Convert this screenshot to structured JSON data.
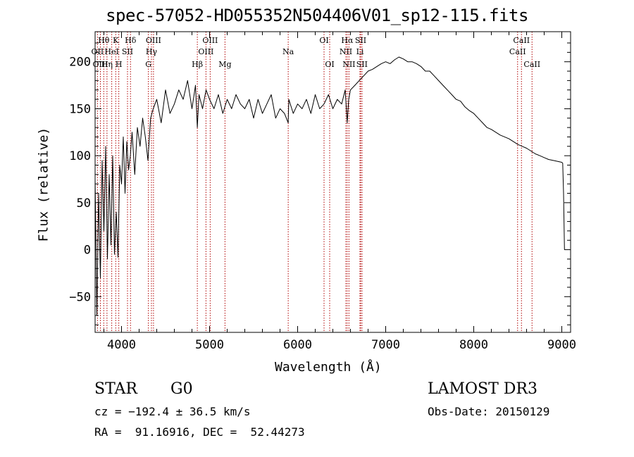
{
  "chart_data": {
    "type": "line",
    "title": "spec-57052-HD055352N504406V01_sp12-115.fits",
    "xlabel": "Wavelength (Å)",
    "ylabel": "Flux (relative)",
    "xlim": [
      3700,
      9100
    ],
    "ylim": [
      -88,
      232
    ],
    "xticks": [
      4000,
      5000,
      6000,
      7000,
      8000,
      9000
    ],
    "yticks": [
      -50,
      0,
      50,
      100,
      150,
      200
    ],
    "series": [
      {
        "name": "flux",
        "x": [
          3700,
          3720,
          3740,
          3760,
          3780,
          3800,
          3820,
          3840,
          3860,
          3880,
          3900,
          3920,
          3940,
          3960,
          3980,
          4000,
          4020,
          4040,
          4060,
          4080,
          4100,
          4120,
          4150,
          4180,
          4210,
          4240,
          4270,
          4300,
          4330,
          4360,
          4400,
          4450,
          4500,
          4550,
          4600,
          4650,
          4700,
          4750,
          4800,
          4840,
          4861,
          4880,
          4920,
          4960,
          5000,
          5050,
          5100,
          5150,
          5200,
          5250,
          5300,
          5350,
          5400,
          5450,
          5500,
          5550,
          5600,
          5650,
          5700,
          5750,
          5800,
          5850,
          5893,
          5900,
          5950,
          6000,
          6050,
          6100,
          6150,
          6200,
          6250,
          6300,
          6350,
          6400,
          6450,
          6500,
          6540,
          6563,
          6580,
          6600,
          6650,
          6700,
          6750,
          6800,
          6850,
          6900,
          6950,
          7000,
          7050,
          7100,
          7150,
          7200,
          7250,
          7300,
          7350,
          7400,
          7450,
          7500,
          7550,
          7600,
          7650,
          7700,
          7750,
          7800,
          7850,
          7900,
          7950,
          8000,
          8050,
          8100,
          8150,
          8200,
          8250,
          8300,
          8350,
          8400,
          8450,
          8500,
          8550,
          8600,
          8650,
          8700,
          8750,
          8800,
          8850,
          8900,
          8950,
          9000,
          9010,
          9020,
          9030
        ],
        "y": [
          75,
          -70,
          60,
          -30,
          95,
          20,
          110,
          -10,
          80,
          5,
          100,
          -5,
          40,
          -8,
          90,
          70,
          120,
          60,
          115,
          85,
          100,
          125,
          80,
          130,
          110,
          140,
          120,
          95,
          140,
          150,
          160,
          135,
          170,
          145,
          155,
          170,
          160,
          180,
          150,
          175,
          130,
          165,
          150,
          170,
          160,
          150,
          165,
          145,
          160,
          150,
          165,
          155,
          150,
          160,
          140,
          160,
          145,
          155,
          165,
          140,
          150,
          145,
          135,
          160,
          145,
          155,
          150,
          160,
          145,
          165,
          150,
          155,
          165,
          150,
          160,
          155,
          170,
          135,
          160,
          170,
          175,
          180,
          185,
          190,
          192,
          195,
          198,
          200,
          198,
          202,
          205,
          203,
          200,
          200,
          198,
          195,
          190,
          190,
          185,
          180,
          175,
          170,
          165,
          160,
          158,
          152,
          148,
          145,
          140,
          135,
          130,
          128,
          125,
          122,
          120,
          118,
          115,
          112,
          110,
          108,
          105,
          102,
          100,
          98,
          96,
          95,
          94,
          93,
          92,
          60,
          0
        ]
      }
    ],
    "lines": [
      {
        "label": "Hθ",
        "wl": 3798,
        "row": 1
      },
      {
        "label": "K",
        "wl": 3934,
        "row": 1
      },
      {
        "label": "Hδ",
        "wl": 4102,
        "row": 1
      },
      {
        "label": "OII",
        "wl": 3727,
        "row": 2
      },
      {
        "label": "HeI",
        "wl": 3889,
        "row": 2
      },
      {
        "label": "SII",
        "wl": 4068,
        "row": 2
      },
      {
        "label": "OIII",
        "wl": 3760,
        "row": 3
      },
      {
        "label": "Hη",
        "wl": 3835,
        "row": 3
      },
      {
        "label": "H",
        "wl": 3969,
        "row": 3
      },
      {
        "label": "OIII",
        "wl": 4363,
        "row": 1
      },
      {
        "label": "Hγ",
        "wl": 4340,
        "row": 2
      },
      {
        "label": "G",
        "wl": 4305,
        "row": 3
      },
      {
        "label": "OIII",
        "wl": 5007,
        "row": 1
      },
      {
        "label": "OIII",
        "wl": 4959,
        "row": 2
      },
      {
        "label": "Hβ",
        "wl": 4861,
        "row": 3
      },
      {
        "label": "Mg",
        "wl": 5175,
        "row": 3
      },
      {
        "label": "Na",
        "wl": 5893,
        "row": 2
      },
      {
        "label": "OI",
        "wl": 6300,
        "row": 1
      },
      {
        "label": "OI",
        "wl": 6364,
        "row": 3
      },
      {
        "label": "Hα",
        "wl": 6563,
        "row": 1
      },
      {
        "label": "SII",
        "wl": 6716,
        "row": 1
      },
      {
        "label": "NII",
        "wl": 6548,
        "row": 2
      },
      {
        "label": "Li",
        "wl": 6708,
        "row": 2
      },
      {
        "label": "NII",
        "wl": 6583,
        "row": 3
      },
      {
        "label": "SII",
        "wl": 6731,
        "row": 3
      },
      {
        "label": "CaII",
        "wl": 8542,
        "row": 1
      },
      {
        "label": "CaII",
        "wl": 8498,
        "row": 2
      },
      {
        "label": "CaII",
        "wl": 8662,
        "row": 3
      }
    ]
  },
  "info": {
    "object_class": "STAR",
    "subclass": "G0",
    "survey": "LAMOST DR3",
    "cz": "cz = −192.4 ± 36.5 km/s",
    "obs_date": "Obs-Date: 20150129",
    "coords": "RA =  91.16916, DEC =  52.44273"
  },
  "colors": {
    "line_markers": "#b00000",
    "spectrum": "#000000"
  }
}
